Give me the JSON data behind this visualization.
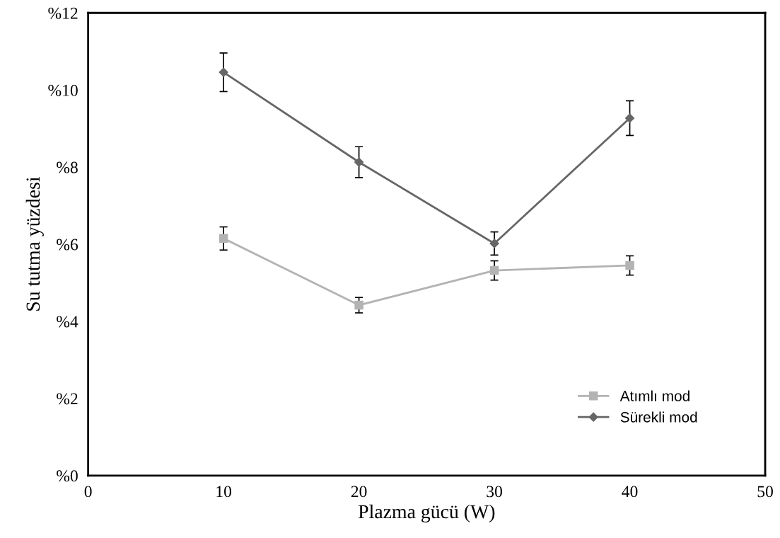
{
  "chart_data": {
    "type": "line",
    "xlabel": "Plazma gücü (W)",
    "ylabel": "Su tutma yüzdesi",
    "x": [
      10,
      20,
      30,
      40
    ],
    "series": [
      {
        "name": "Atımlı mod",
        "color": "#b3b3b3",
        "marker": "square",
        "values": [
          6.15,
          4.42,
          5.32,
          5.45
        ],
        "errors": [
          0.3,
          0.2,
          0.25,
          0.25
        ]
      },
      {
        "name": "Sürekli mod",
        "color": "#666666",
        "marker": "diamond",
        "values": [
          10.46,
          8.13,
          6.02,
          9.27
        ],
        "errors": [
          0.5,
          0.4,
          0.3,
          0.45
        ]
      }
    ],
    "xlim": [
      0,
      50
    ],
    "xticks": [
      0,
      10,
      20,
      30,
      40,
      50
    ],
    "ylim": [
      0,
      12
    ],
    "yticks": [
      {
        "value": 0,
        "label": "%0"
      },
      {
        "value": 2,
        "label": "%2"
      },
      {
        "value": 4,
        "label": "%4"
      },
      {
        "value": 6,
        "label": "%6"
      },
      {
        "value": 8,
        "label": "%8"
      },
      {
        "value": 10,
        "label": "%10"
      },
      {
        "value": 12,
        "label": "%12"
      }
    ],
    "grid": false,
    "legend": "bottom right",
    "line_style": "solid"
  }
}
